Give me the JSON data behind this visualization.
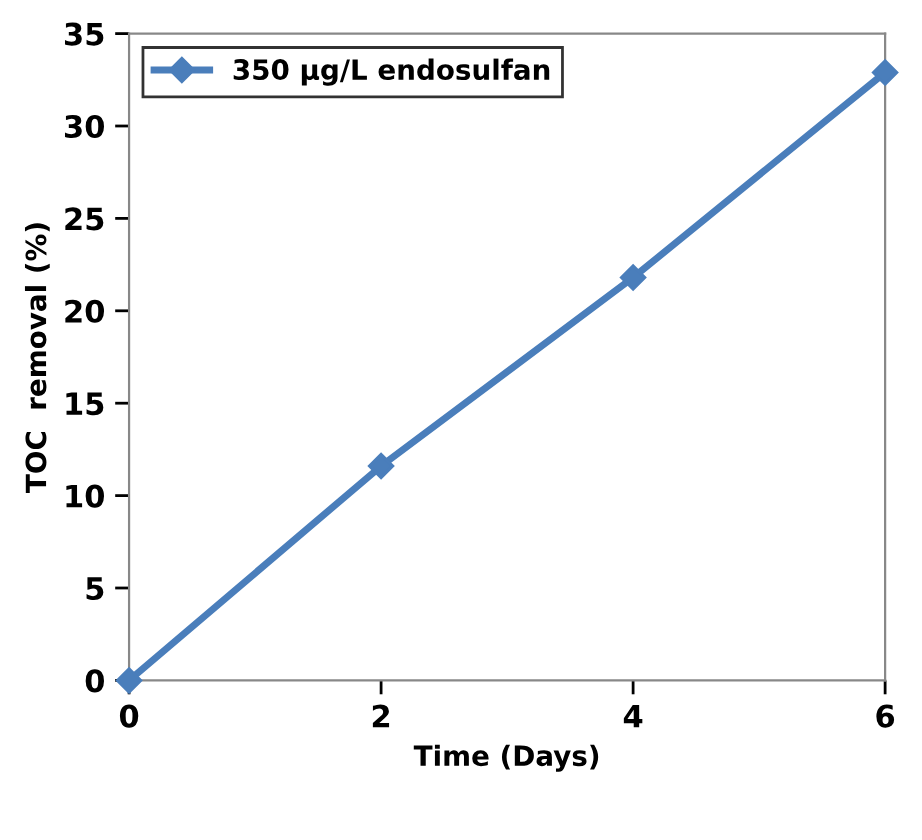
{
  "chart_data": {
    "type": "line",
    "xlabel": "Time (Days)",
    "ylabel": "TOC  removal (%)",
    "x": [
      0,
      2,
      4,
      6
    ],
    "series": [
      {
        "name": "350 µg/L endosulfan",
        "color": "#4a7ebb",
        "values": [
          0,
          11.6,
          21.8,
          32.9
        ]
      }
    ],
    "xlim": [
      0,
      6
    ],
    "xticks": [
      0,
      2,
      4,
      6
    ],
    "ylim": [
      0,
      35
    ],
    "yticks": [
      0,
      5,
      10,
      15,
      20,
      25,
      30,
      35
    ],
    "marker": "diamond",
    "line_style": "solid",
    "legend": "top left",
    "grid": false
  }
}
